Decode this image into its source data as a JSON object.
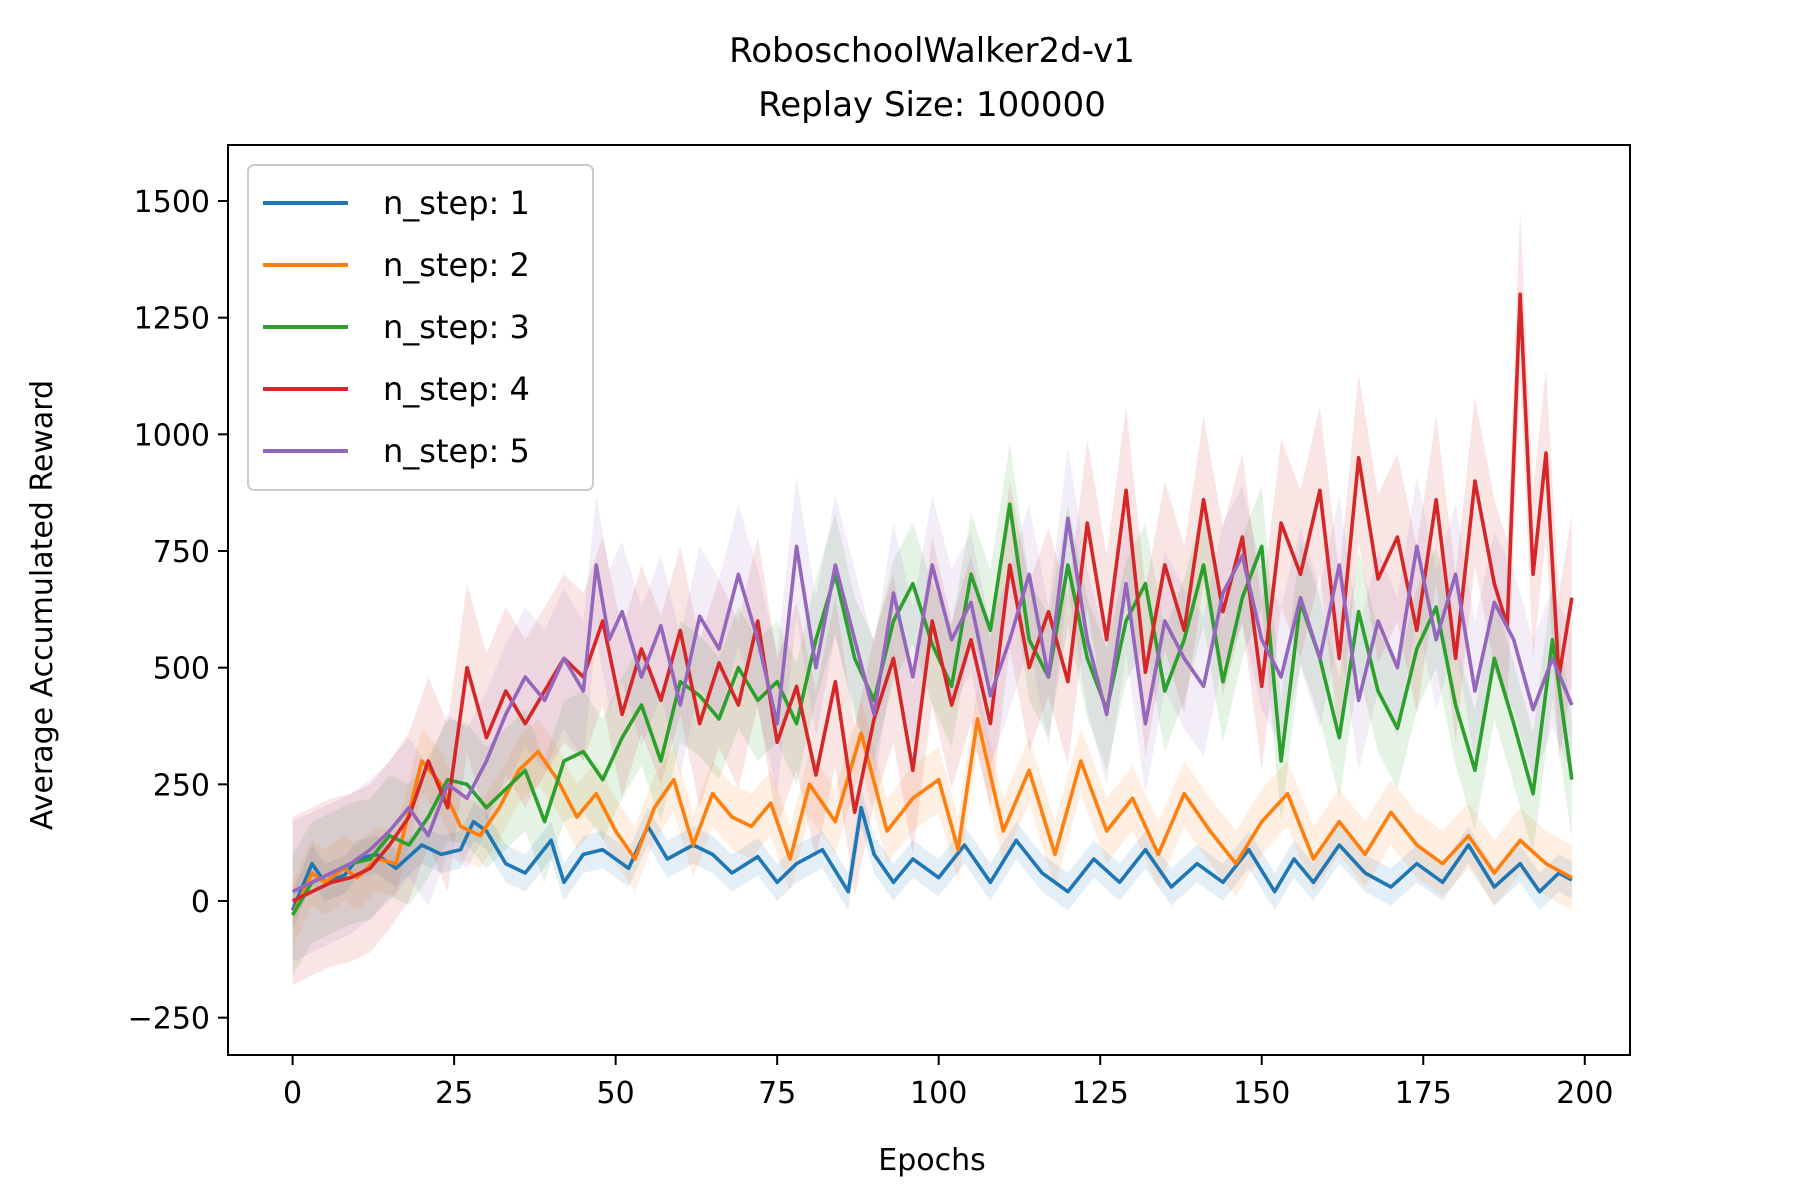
{
  "chart_data": {
    "type": "line",
    "title": "RoboschoolWalker2d-v1",
    "subtitle": "Replay Size: 100000",
    "xlabel": "Epochs",
    "ylabel": "Average Accumulated Reward",
    "xlim": [
      -10,
      207
    ],
    "ylim": [
      -330,
      1620
    ],
    "xticks": [
      0,
      25,
      50,
      75,
      100,
      125,
      150,
      175,
      200
    ],
    "yticks": [
      -250,
      0,
      250,
      500,
      750,
      1000,
      1250,
      1500
    ],
    "xtick_labels": [
      "0",
      "25",
      "50",
      "75",
      "100",
      "125",
      "150",
      "175",
      "200"
    ],
    "ytick_labels": [
      "−250",
      "0",
      "250",
      "500",
      "750",
      "1000",
      "1250",
      "1500"
    ],
    "legend_position": "upper-left",
    "series": [
      {
        "name": "n_step: 1",
        "color": "#1f77b4",
        "band_width": 40,
        "x": [
          0,
          3,
          5,
          8,
          10,
          13,
          16,
          20,
          23,
          26,
          28,
          30,
          33,
          36,
          40,
          42,
          45,
          48,
          52,
          55,
          58,
          62,
          65,
          68,
          72,
          75,
          78,
          82,
          86,
          88,
          90,
          93,
          96,
          100,
          104,
          108,
          112,
          116,
          120,
          124,
          128,
          132,
          136,
          140,
          144,
          148,
          152,
          155,
          158,
          162,
          166,
          170,
          174,
          178,
          182,
          186,
          190,
          193,
          196,
          198
        ],
        "y": [
          -20,
          80,
          40,
          55,
          90,
          100,
          70,
          120,
          100,
          110,
          170,
          150,
          80,
          60,
          130,
          40,
          100,
          110,
          70,
          160,
          90,
          120,
          100,
          60,
          95,
          40,
          80,
          110,
          20,
          200,
          100,
          40,
          90,
          50,
          120,
          40,
          130,
          60,
          20,
          90,
          40,
          110,
          30,
          80,
          40,
          110,
          20,
          90,
          40,
          120,
          60,
          30,
          80,
          40,
          120,
          30,
          80,
          20,
          60,
          45
        ]
      },
      {
        "name": "n_step: 2",
        "color": "#ff7f0e",
        "band_width": 70,
        "x": [
          0,
          3,
          5,
          8,
          10,
          13,
          16,
          20,
          23,
          26,
          29,
          32,
          35,
          38,
          41,
          44,
          47,
          50,
          53,
          56,
          59,
          62,
          65,
          68,
          71,
          74,
          77,
          80,
          84,
          88,
          92,
          96,
          100,
          103,
          106,
          110,
          114,
          118,
          122,
          126,
          130,
          134,
          138,
          142,
          146,
          150,
          154,
          158,
          162,
          166,
          170,
          174,
          178,
          182,
          186,
          190,
          194,
          198
        ],
        "y": [
          -30,
          60,
          40,
          70,
          50,
          90,
          80,
          300,
          250,
          160,
          140,
          200,
          280,
          320,
          260,
          180,
          230,
          150,
          90,
          200,
          260,
          120,
          230,
          180,
          160,
          210,
          90,
          250,
          170,
          360,
          150,
          220,
          260,
          110,
          390,
          150,
          280,
          100,
          300,
          150,
          220,
          100,
          230,
          150,
          80,
          170,
          230,
          90,
          170,
          100,
          190,
          120,
          80,
          140,
          60,
          130,
          80,
          50
        ]
      },
      {
        "name": "n_step: 3",
        "color": "#2ca02c",
        "band_width": 130,
        "x": [
          0,
          3,
          6,
          9,
          12,
          15,
          18,
          21,
          24,
          27,
          30,
          33,
          36,
          39,
          42,
          45,
          48,
          51,
          54,
          57,
          60,
          63,
          66,
          69,
          72,
          75,
          78,
          81,
          84,
          87,
          90,
          93,
          96,
          99,
          102,
          105,
          108,
          111,
          114,
          117,
          120,
          123,
          126,
          129,
          132,
          135,
          138,
          141,
          144,
          147,
          150,
          153,
          156,
          159,
          162,
          165,
          168,
          171,
          174,
          177,
          180,
          183,
          186,
          189,
          192,
          195,
          198
        ],
        "y": [
          -30,
          40,
          60,
          80,
          90,
          140,
          120,
          180,
          260,
          250,
          200,
          240,
          280,
          170,
          300,
          320,
          260,
          350,
          420,
          300,
          470,
          440,
          390,
          500,
          430,
          470,
          380,
          560,
          700,
          520,
          430,
          600,
          680,
          550,
          460,
          700,
          580,
          850,
          560,
          480,
          720,
          520,
          410,
          600,
          680,
          450,
          560,
          720,
          470,
          650,
          760,
          300,
          640,
          520,
          350,
          620,
          450,
          370,
          540,
          630,
          420,
          280,
          520,
          380,
          230,
          560,
          260
        ]
      },
      {
        "name": "n_step: 4",
        "color": "#d62728",
        "band_width": 180,
        "x": [
          0,
          3,
          6,
          9,
          12,
          15,
          18,
          21,
          24,
          27,
          30,
          33,
          36,
          39,
          42,
          45,
          48,
          51,
          54,
          57,
          60,
          63,
          66,
          69,
          72,
          75,
          78,
          81,
          84,
          87,
          90,
          93,
          96,
          99,
          102,
          105,
          108,
          111,
          114,
          117,
          120,
          123,
          126,
          129,
          132,
          135,
          138,
          141,
          144,
          147,
          150,
          153,
          156,
          159,
          162,
          165,
          168,
          171,
          174,
          177,
          180,
          183,
          186,
          188,
          190,
          192,
          194,
          196,
          198
        ],
        "y": [
          0,
          20,
          40,
          50,
          70,
          120,
          180,
          300,
          200,
          500,
          350,
          450,
          380,
          450,
          520,
          480,
          600,
          400,
          540,
          430,
          580,
          380,
          510,
          420,
          600,
          340,
          460,
          270,
          470,
          190,
          390,
          520,
          280,
          600,
          420,
          560,
          380,
          720,
          500,
          620,
          470,
          810,
          560,
          880,
          490,
          720,
          580,
          860,
          620,
          780,
          460,
          810,
          700,
          880,
          520,
          950,
          690,
          780,
          580,
          860,
          520,
          900,
          680,
          590,
          1300,
          700,
          960,
          480,
          650
        ]
      },
      {
        "name": "n_step: 5",
        "color": "#9467bd",
        "band_width": 150,
        "x": [
          0,
          3,
          6,
          9,
          12,
          15,
          18,
          21,
          24,
          27,
          30,
          33,
          36,
          39,
          42,
          45,
          47,
          49,
          51,
          54,
          57,
          60,
          63,
          66,
          69,
          72,
          75,
          78,
          81,
          84,
          87,
          90,
          93,
          96,
          99,
          102,
          105,
          108,
          111,
          114,
          117,
          120,
          123,
          126,
          129,
          132,
          135,
          138,
          141,
          144,
          147,
          150,
          153,
          156,
          159,
          162,
          165,
          168,
          171,
          174,
          177,
          180,
          183,
          186,
          189,
          192,
          195,
          198
        ],
        "y": [
          20,
          40,
          60,
          80,
          110,
          150,
          200,
          140,
          250,
          220,
          300,
          400,
          480,
          430,
          520,
          450,
          720,
          560,
          620,
          480,
          590,
          420,
          610,
          540,
          700,
          560,
          380,
          760,
          500,
          720,
          560,
          400,
          660,
          480,
          720,
          560,
          640,
          440,
          560,
          700,
          480,
          820,
          560,
          400,
          680,
          380,
          600,
          520,
          460,
          660,
          740,
          560,
          480,
          650,
          520,
          720,
          430,
          600,
          500,
          760,
          560,
          700,
          450,
          640,
          560,
          410,
          520,
          420
        ]
      }
    ]
  }
}
